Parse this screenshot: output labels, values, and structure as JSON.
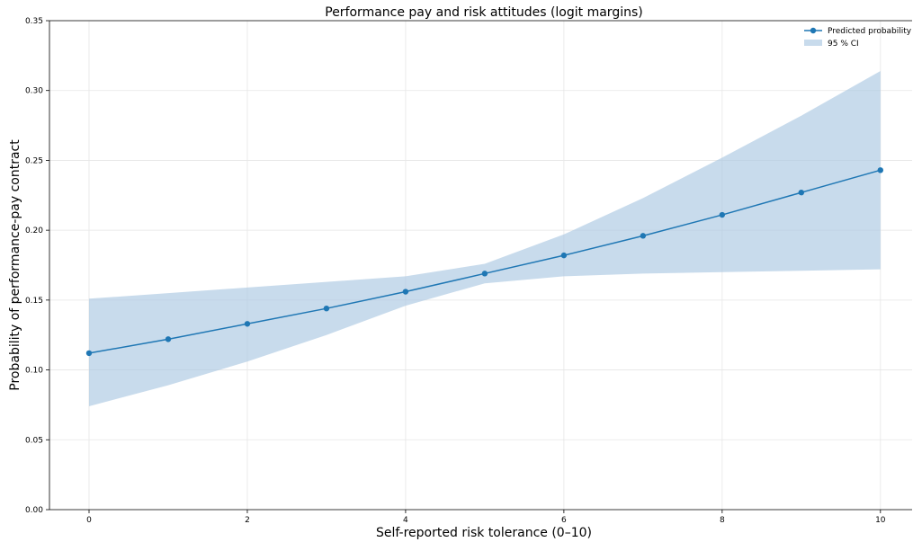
{
  "chart_data": {
    "type": "line",
    "title": "Performance pay and risk attitudes (logit margins)",
    "xlabel": "Self-reported risk tolerance (0–10)",
    "ylabel": "Probability of performance-pay contract",
    "xlim": [
      -0.5,
      10.4
    ],
    "ylim": [
      0.0,
      0.35
    ],
    "x_ticks": [
      0,
      2,
      4,
      6,
      8,
      10
    ],
    "x_tick_labels": [
      "0",
      "2",
      "4",
      "6",
      "8",
      "10"
    ],
    "y_ticks": [
      0.0,
      0.05,
      0.1,
      0.15,
      0.2,
      0.25,
      0.3,
      0.35
    ],
    "y_tick_labels": [
      "0.00",
      "0.05",
      "0.10",
      "0.15",
      "0.20",
      "0.25",
      "0.30",
      "0.35"
    ],
    "grid": true,
    "legend_position": "top-right",
    "x": [
      0,
      1,
      2,
      3,
      4,
      5,
      6,
      7,
      8,
      9,
      10
    ],
    "series": [
      {
        "name": "Predicted probability",
        "values": [
          0.112,
          0.122,
          0.133,
          0.144,
          0.156,
          0.169,
          0.182,
          0.196,
          0.211,
          0.227,
          0.243
        ],
        "color": "#1f77b4"
      }
    ],
    "ci_band": {
      "name": "95 % CI",
      "lower": [
        0.074,
        0.089,
        0.106,
        0.125,
        0.146,
        0.162,
        0.167,
        0.169,
        0.17,
        0.171,
        0.172
      ],
      "upper": [
        0.151,
        0.155,
        0.159,
        0.163,
        0.167,
        0.176,
        0.197,
        0.223,
        0.252,
        0.282,
        0.314
      ],
      "color": "#aac8e2"
    }
  }
}
